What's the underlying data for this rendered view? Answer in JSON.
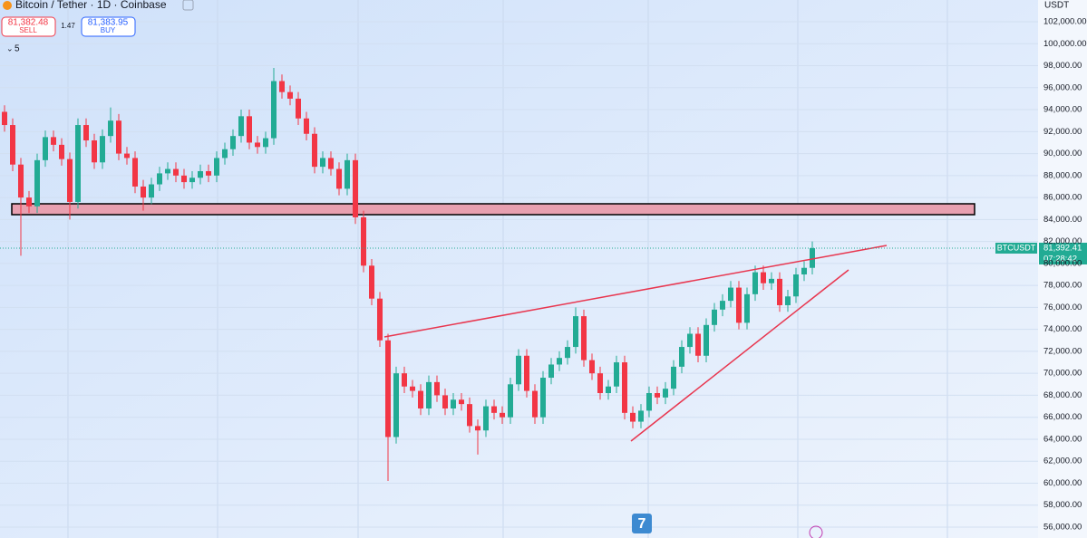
{
  "toolbar": {
    "title": "Bitcoin / Tether · 1D · Coinbase",
    "sell_price": "81,382.48",
    "sell_label": "SELL",
    "spread": "1.47",
    "buy_price": "81,383.95",
    "buy_label": "BUY",
    "indicators": "5",
    "currency": "USDT",
    "badge": "7"
  },
  "chart_data": {
    "type": "candlestick",
    "symbol": "BTCUSDT",
    "up_color": "#22ab94",
    "down_color": "#f23645",
    "last_price": {
      "value": 81392.41,
      "label": "81,392.41"
    },
    "countdown": "07:28:42",
    "ylim": [
      55010,
      103980
    ],
    "yticks": [
      {
        "value": 56000,
        "label": "56,000.00"
      },
      {
        "value": 58000,
        "label": "58,000.00"
      },
      {
        "value": 60000,
        "label": "60,000.00"
      },
      {
        "value": 62000,
        "label": "62,000.00"
      },
      {
        "value": 64000,
        "label": "64,000.00"
      },
      {
        "value": 66000,
        "label": "66,000.00"
      },
      {
        "value": 68000,
        "label": "68,000.00"
      },
      {
        "value": 70000,
        "label": "70,000.00"
      },
      {
        "value": 72000,
        "label": "72,000.00"
      },
      {
        "value": 74000,
        "label": "74,000.00"
      },
      {
        "value": 76000,
        "label": "76,000.00"
      },
      {
        "value": 78000,
        "label": "78,000.00"
      },
      {
        "value": 80000,
        "label": "80,000.00"
      },
      {
        "value": 82000,
        "label": "82,000.00"
      },
      {
        "value": 84000,
        "label": "84,000.00"
      },
      {
        "value": 86000,
        "label": "86,000.00"
      },
      {
        "value": 88000,
        "label": "88,000.00"
      },
      {
        "value": 90000,
        "label": "90,000.00"
      },
      {
        "value": 92000,
        "label": "92,000.00"
      },
      {
        "value": 94000,
        "label": "94,000.00"
      },
      {
        "value": 96000,
        "label": "96,000.00"
      },
      {
        "value": 98000,
        "label": "98,000.00"
      },
      {
        "value": 100000,
        "label": "100,000.00"
      },
      {
        "value": 102000,
        "label": "102,000.00"
      }
    ],
    "ohlc": [
      [
        93800,
        94400,
        92000,
        92600
      ],
      [
        92600,
        93200,
        88400,
        89000
      ],
      [
        89000,
        89600,
        80700,
        86000
      ],
      [
        86000,
        86600,
        84600,
        85200
      ],
      [
        85200,
        90000,
        84600,
        89400
      ],
      [
        89400,
        92100,
        88800,
        91500
      ],
      [
        91500,
        92100,
        90200,
        90800
      ],
      [
        90800,
        91400,
        88900,
        89500
      ],
      [
        89500,
        90100,
        84000,
        85600
      ],
      [
        85600,
        93200,
        85000,
        92600
      ],
      [
        92600,
        93200,
        90600,
        91200
      ],
      [
        91200,
        91800,
        88600,
        89200
      ],
      [
        89200,
        92200,
        88600,
        91600
      ],
      [
        91600,
        94200,
        91000,
        93000
      ],
      [
        93000,
        93600,
        89400,
        90000
      ],
      [
        90000,
        90600,
        89000,
        89600
      ],
      [
        89600,
        90200,
        86400,
        87000
      ],
      [
        87000,
        87600,
        84800,
        86000
      ],
      [
        86000,
        87800,
        85400,
        87200
      ],
      [
        87200,
        88800,
        86600,
        88200
      ],
      [
        88200,
        89200,
        87600,
        88600
      ],
      [
        88600,
        89200,
        87400,
        88000
      ],
      [
        88000,
        88600,
        86800,
        87400
      ],
      [
        87400,
        88400,
        86800,
        87800
      ],
      [
        87800,
        89000,
        87200,
        88400
      ],
      [
        88400,
        89000,
        87400,
        88000
      ],
      [
        88000,
        90200,
        87400,
        89600
      ],
      [
        89600,
        91000,
        89000,
        90400
      ],
      [
        90400,
        92200,
        89800,
        91600
      ],
      [
        91600,
        94000,
        91000,
        93400
      ],
      [
        93400,
        94000,
        90400,
        91000
      ],
      [
        91000,
        91600,
        90000,
        90600
      ],
      [
        90600,
        92000,
        90000,
        91400
      ],
      [
        91400,
        97800,
        90800,
        96600
      ],
      [
        96600,
        97200,
        95000,
        95600
      ],
      [
        95600,
        96200,
        94400,
        95000
      ],
      [
        95000,
        95600,
        92600,
        93200
      ],
      [
        93200,
        93800,
        91200,
        91800
      ],
      [
        91800,
        92400,
        88200,
        88800
      ],
      [
        88800,
        90200,
        88200,
        89600
      ],
      [
        89600,
        90200,
        88000,
        88600
      ],
      [
        88600,
        89200,
        86200,
        86800
      ],
      [
        86800,
        90000,
        86200,
        89400
      ],
      [
        89400,
        90000,
        83600,
        84200
      ],
      [
        84200,
        84800,
        79200,
        79800
      ],
      [
        79800,
        80400,
        76200,
        76800
      ],
      [
        76800,
        77400,
        72400,
        73000
      ],
      [
        73000,
        73600,
        60200,
        64200
      ],
      [
        64200,
        70600,
        63600,
        70000
      ],
      [
        70000,
        70600,
        68200,
        68800
      ],
      [
        68800,
        69400,
        67800,
        68400
      ],
      [
        68400,
        69000,
        66200,
        66800
      ],
      [
        66800,
        69800,
        66200,
        69200
      ],
      [
        69200,
        69800,
        67400,
        68000
      ],
      [
        68000,
        68600,
        66200,
        66800
      ],
      [
        66800,
        68200,
        66200,
        67600
      ],
      [
        67600,
        68200,
        66600,
        67200
      ],
      [
        67200,
        67800,
        64600,
        65200
      ],
      [
        65200,
        65800,
        62600,
        64800
      ],
      [
        64800,
        67600,
        64200,
        67000
      ],
      [
        67000,
        67600,
        65800,
        66400
      ],
      [
        66400,
        67000,
        65400,
        66000
      ],
      [
        66000,
        69600,
        65400,
        69000
      ],
      [
        69000,
        72200,
        68400,
        71600
      ],
      [
        71600,
        72200,
        67800,
        68400
      ],
      [
        68400,
        69000,
        65400,
        66000
      ],
      [
        66000,
        70200,
        65400,
        69600
      ],
      [
        69600,
        71400,
        69000,
        70800
      ],
      [
        70800,
        72000,
        70200,
        71400
      ],
      [
        71400,
        73000,
        70800,
        72400
      ],
      [
        72400,
        76000,
        71800,
        75200
      ],
      [
        75200,
        75800,
        70600,
        71200
      ],
      [
        71200,
        71800,
        69400,
        70000
      ],
      [
        70000,
        70600,
        67600,
        68200
      ],
      [
        68200,
        69400,
        67600,
        68800
      ],
      [
        68800,
        71600,
        68200,
        71000
      ],
      [
        71000,
        71600,
        65800,
        66400
      ],
      [
        66400,
        67000,
        65000,
        65600
      ],
      [
        65600,
        67200,
        65000,
        66600
      ],
      [
        66600,
        68800,
        66000,
        68200
      ],
      [
        68200,
        68800,
        67200,
        67800
      ],
      [
        67800,
        69200,
        67200,
        68600
      ],
      [
        68600,
        71200,
        68000,
        70600
      ],
      [
        70600,
        73000,
        70000,
        72400
      ],
      [
        72400,
        74200,
        71800,
        73600
      ],
      [
        73600,
        74200,
        71000,
        71600
      ],
      [
        71600,
        75000,
        71000,
        74400
      ],
      [
        74400,
        76400,
        73800,
        75800
      ],
      [
        75800,
        77200,
        75200,
        76600
      ],
      [
        76600,
        78400,
        76000,
        77800
      ],
      [
        77800,
        78400,
        74000,
        74600
      ],
      [
        74600,
        77800,
        74000,
        77200
      ],
      [
        77200,
        79800,
        76600,
        79200
      ],
      [
        79200,
        79800,
        77600,
        78200
      ],
      [
        78200,
        79200,
        77600,
        78600
      ],
      [
        78600,
        79200,
        75600,
        76200
      ],
      [
        76200,
        77600,
        75600,
        77000
      ],
      [
        77000,
        79600,
        76400,
        79000
      ],
      [
        79000,
        80200,
        78400,
        79600
      ],
      [
        79600,
        82000,
        79000,
        81392
      ]
    ]
  }
}
